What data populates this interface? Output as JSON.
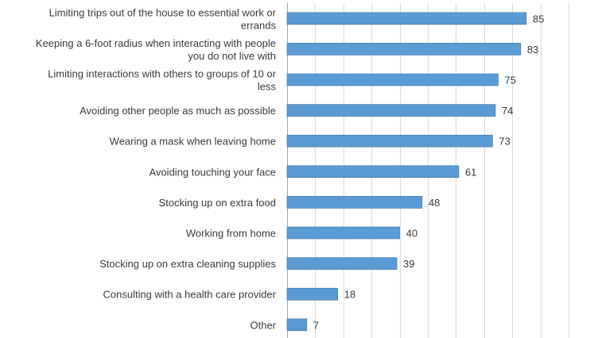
{
  "chart_data": {
    "type": "bar",
    "orientation": "horizontal",
    "title": "",
    "xlabel": "",
    "ylabel": "",
    "categories": [
      "Limiting trips out of the house to essential work or errands",
      "Keeping a 6-foot radius when interacting with people you do not live with",
      "Limiting interactions with others to groups of 10 or less",
      "Avoiding other people as much as possible",
      "Wearing a mask when leaving home",
      "Avoiding touching your face",
      "Stocking up on extra food",
      "Working from home",
      "Stocking up on extra cleaning supplies",
      "Consulting with a health care provider",
      "Other"
    ],
    "category_lines": [
      [
        "Limiting trips out of the house to essential work or",
        "errands"
      ],
      [
        "Keeping a 6-foot radius when interacting with people",
        "you do not live with"
      ],
      [
        "Limiting interactions with others to groups of 10 or",
        "less"
      ],
      [
        "Avoiding other people as much as possible"
      ],
      [
        "Wearing a mask when leaving home"
      ],
      [
        "Avoiding touching your face"
      ],
      [
        "Stocking up on extra food"
      ],
      [
        "Working from home"
      ],
      [
        "Stocking up on extra cleaning supplies"
      ],
      [
        "Consulting with a health care provider"
      ],
      [
        "Other"
      ]
    ],
    "values": [
      85,
      83,
      75,
      74,
      73,
      61,
      48,
      40,
      39,
      18,
      7
    ],
    "xlim": [
      0,
      100
    ],
    "grid": true,
    "legend": "none",
    "data_labels": true,
    "colors": {
      "bar": "#5b9bd5",
      "bar_edge": "#41719c",
      "grid": "#d9d9d9",
      "text": "#3a3a3a"
    }
  }
}
